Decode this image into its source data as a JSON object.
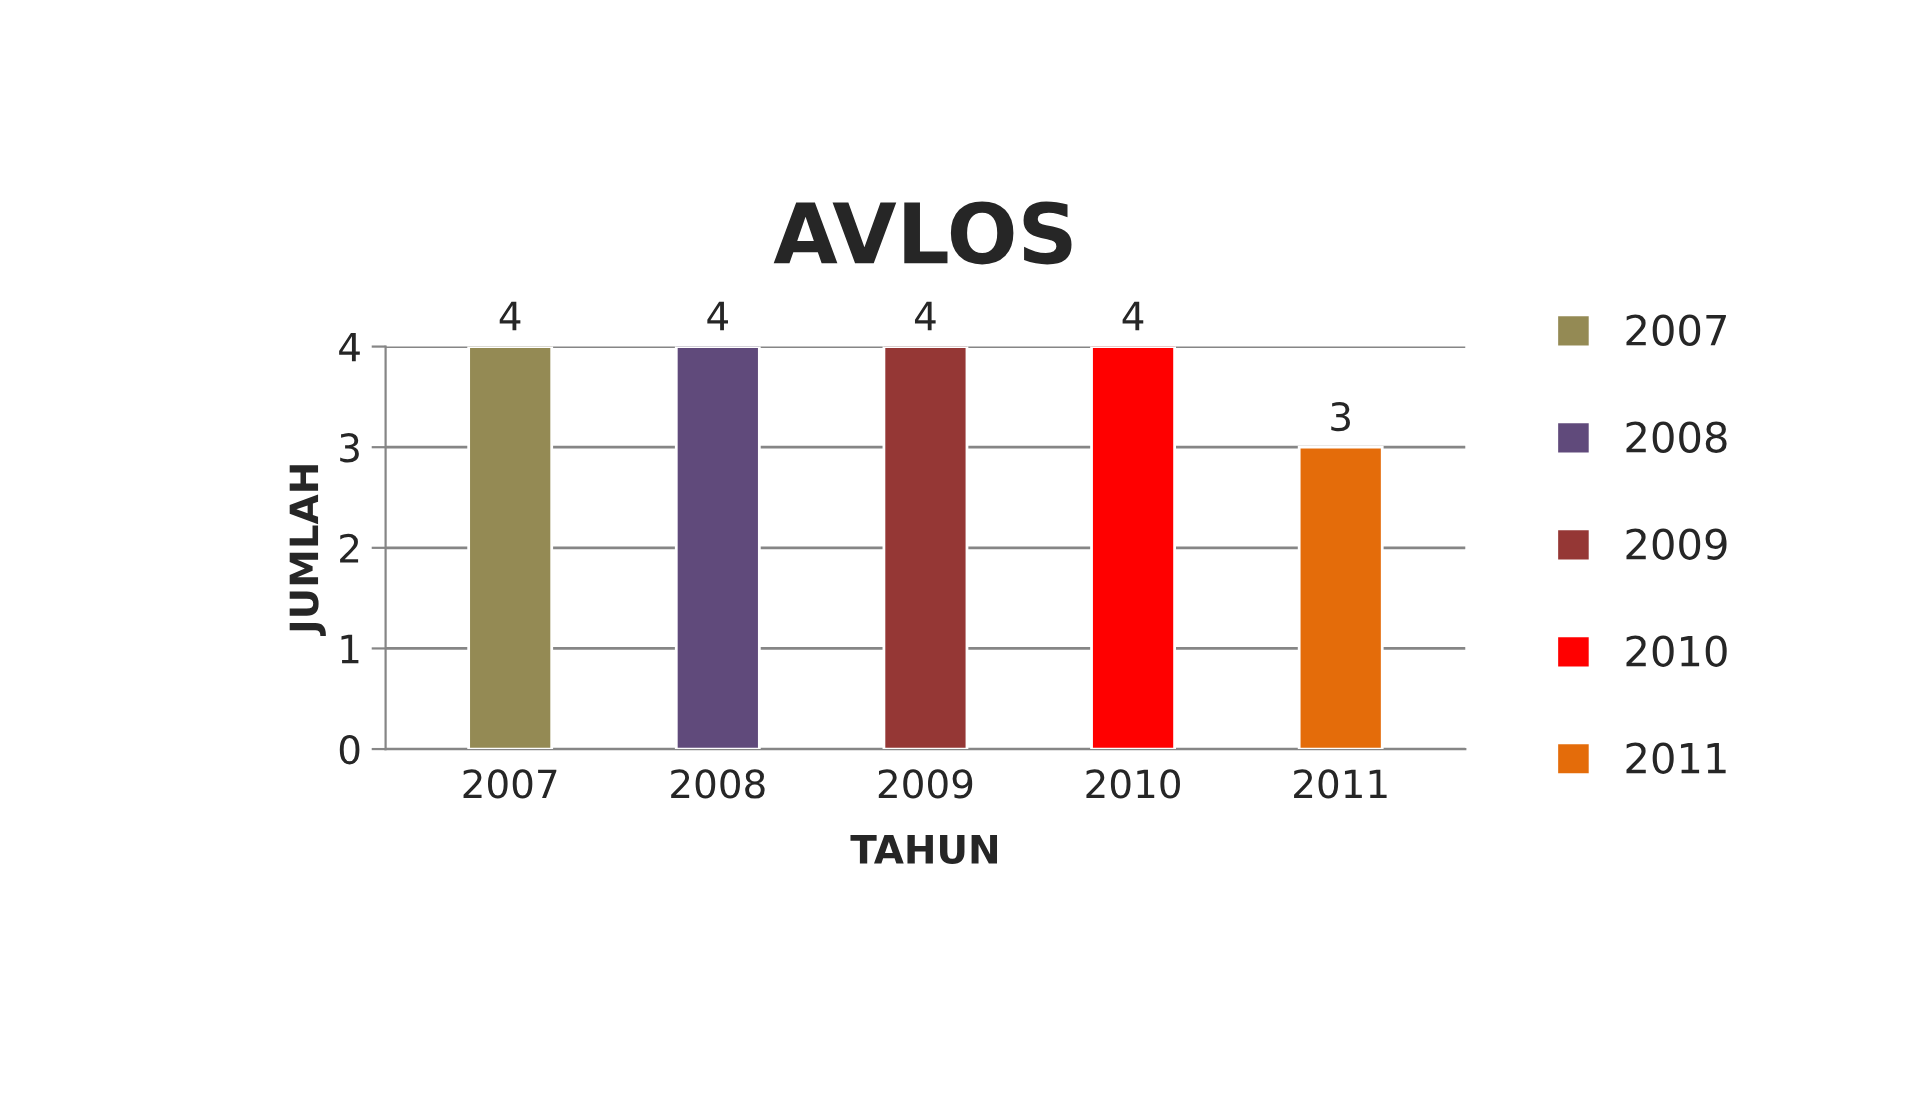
{
  "chart_data": {
    "type": "bar",
    "title": "AVLOS",
    "xlabel": "TAHUN",
    "ylabel": "JUMLAH",
    "categories": [
      "2007",
      "2008",
      "2009",
      "2010",
      "2011"
    ],
    "stacked": true,
    "series": [
      {
        "name": "2007",
        "color": "#948a54",
        "values": [
          4,
          null,
          null,
          null,
          null
        ]
      },
      {
        "name": "2008",
        "color": "#604a7b",
        "values": [
          null,
          4,
          null,
          null,
          null
        ]
      },
      {
        "name": "2009",
        "color": "#953735",
        "values": [
          null,
          null,
          4,
          null,
          null
        ]
      },
      {
        "name": "2010",
        "color": "#ff0000",
        "values": [
          null,
          null,
          null,
          4,
          null
        ]
      },
      {
        "name": "2011",
        "color": "#e46c0a",
        "values": [
          null,
          null,
          null,
          null,
          3
        ]
      }
    ],
    "ylim": [
      0,
      4
    ],
    "yticks": [
      0,
      1,
      2,
      3,
      4
    ],
    "grid": "y",
    "data_labels": true,
    "legend": "right"
  }
}
